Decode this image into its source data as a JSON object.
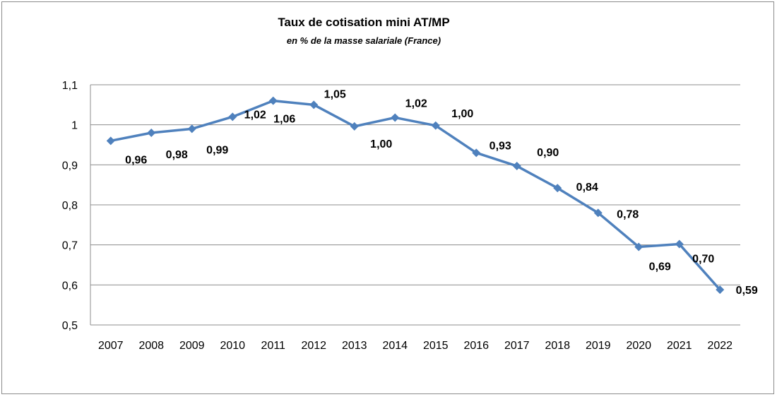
{
  "chart_data": {
    "type": "line",
    "title": "Taux de cotisation mini  AT/MP",
    "subtitle": "en % de la masse salariale (France)",
    "xlabel": "",
    "ylabel": "",
    "categories": [
      "2007",
      "2008",
      "2009",
      "2010",
      "2011",
      "2012",
      "2013",
      "2014",
      "2015",
      "2016",
      "2017",
      "2018",
      "2019",
      "2020",
      "2021",
      "2022"
    ],
    "values": [
      0.96,
      0.98,
      0.99,
      1.02,
      1.06,
      1.05,
      0.996,
      1.018,
      0.998,
      0.93,
      0.897,
      0.842,
      0.78,
      0.695,
      0.702,
      0.588
    ],
    "data_labels": [
      "0,96",
      "0,98",
      "0,99",
      "1,02",
      "1,06",
      "1,05",
      "1,00",
      "1,02",
      "1,00",
      "0,93",
      "0,90",
      "0,84",
      "0,78",
      "0,69",
      "0,70",
      "0,59"
    ],
    "ylim": [
      0.5,
      1.1
    ],
    "y_ticks": [
      {
        "value": 0.5,
        "label": "0,5"
      },
      {
        "value": 0.6,
        "label": "0,6"
      },
      {
        "value": 0.7,
        "label": "0,7"
      },
      {
        "value": 0.8,
        "label": "0,8"
      },
      {
        "value": 0.9,
        "label": "0,9"
      },
      {
        "value": 1.0,
        "label": "1"
      },
      {
        "value": 1.1,
        "label": "1,1"
      }
    ],
    "grid": true,
    "legend": "none",
    "marker": "diamond",
    "line_color": "#4f81bd",
    "grid_color": "#8c8c8c"
  }
}
